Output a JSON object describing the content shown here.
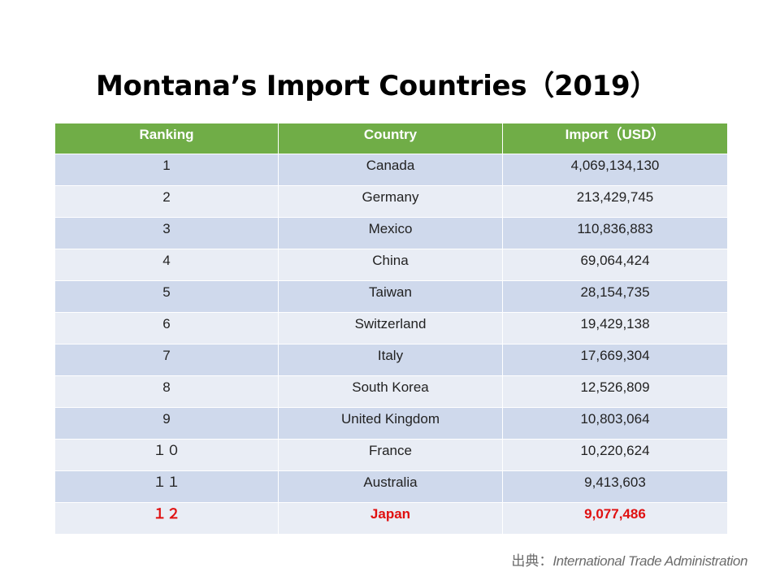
{
  "title": "Montana’s Import Countries（2019）",
  "table": {
    "headers": [
      "Ranking",
      "Country",
      "Import（USD）"
    ],
    "rows": [
      {
        "rank": "1",
        "country": "Canada",
        "import": "4,069,134,130"
      },
      {
        "rank": "2",
        "country": "Germany",
        "import": "213,429,745"
      },
      {
        "rank": "3",
        "country": "Mexico",
        "import": "110,836,883"
      },
      {
        "rank": "4",
        "country": "China",
        "import": "69,064,424"
      },
      {
        "rank": "5",
        "country": "Taiwan",
        "import": "28,154,735"
      },
      {
        "rank": "6",
        "country": "Switzerland",
        "import": "19,429,138"
      },
      {
        "rank": "7",
        "country": "Italy",
        "import": "17,669,304"
      },
      {
        "rank": "8",
        "country": "South Korea",
        "import": "12,526,809"
      },
      {
        "rank": "9",
        "country": "United Kingdom",
        "import": "10,803,064"
      },
      {
        "rank": "１０",
        "country": "France",
        "import": "10,220,624"
      },
      {
        "rank": "１１",
        "country": "Australia",
        "import": "9,413,603"
      },
      {
        "rank": "１２",
        "country": "Japan",
        "import": "9,077,486"
      }
    ]
  },
  "colors": {
    "header_bg": "#70ad47",
    "row_odd_bg": "#cfd9ec",
    "row_even_bg": "#e9edf5",
    "highlight_text": "#e01010"
  },
  "source": {
    "prefix": "出典：",
    "name": "International Trade Administration"
  }
}
